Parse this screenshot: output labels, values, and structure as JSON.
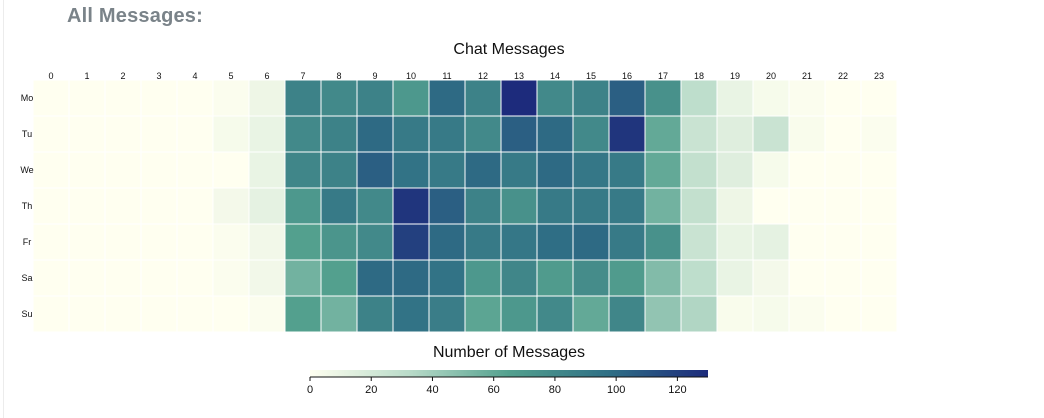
{
  "page": {
    "title": "All Messages:"
  },
  "chart_data": {
    "type": "heatmap",
    "title": "Chat Messages",
    "x_ticks": [
      "0",
      "1",
      "2",
      "3",
      "4",
      "5",
      "6",
      "7",
      "8",
      "9",
      "10",
      "11",
      "12",
      "13",
      "14",
      "15",
      "16",
      "17",
      "18",
      "19",
      "20",
      "21",
      "22",
      "23"
    ],
    "y_ticks": [
      "Mo",
      "Tu",
      "We",
      "Th",
      "Fr",
      "Sa",
      "Su"
    ],
    "values": [
      [
        0,
        0,
        0,
        0,
        0,
        2,
        8,
        85,
        80,
        85,
        70,
        100,
        85,
        130,
        80,
        85,
        105,
        75,
        30,
        10,
        4,
        2,
        0,
        0
      ],
      [
        0,
        0,
        0,
        0,
        0,
        4,
        10,
        80,
        85,
        100,
        90,
        90,
        80,
        105,
        100,
        80,
        125,
        60,
        25,
        15,
        25,
        3,
        0,
        2
      ],
      [
        0,
        0,
        0,
        0,
        0,
        0,
        10,
        82,
        85,
        105,
        95,
        90,
        100,
        90,
        100,
        92,
        90,
        60,
        28,
        15,
        4,
        0,
        0,
        0
      ],
      [
        0,
        0,
        0,
        0,
        0,
        5,
        12,
        70,
        90,
        80,
        125,
        105,
        85,
        75,
        90,
        90,
        90,
        55,
        28,
        8,
        0,
        0,
        0,
        0
      ],
      [
        0,
        0,
        0,
        0,
        0,
        2,
        6,
        65,
        72,
        80,
        120,
        100,
        90,
        92,
        98,
        100,
        90,
        75,
        25,
        10,
        12,
        0,
        0,
        0
      ],
      [
        0,
        0,
        0,
        0,
        0,
        2,
        6,
        55,
        65,
        100,
        100,
        95,
        70,
        82,
        68,
        78,
        68,
        50,
        30,
        10,
        5,
        0,
        0,
        0
      ],
      [
        0,
        0,
        0,
        0,
        0,
        0,
        2,
        65,
        55,
        85,
        95,
        88,
        62,
        70,
        80,
        60,
        82,
        45,
        35,
        3,
        4,
        2,
        0,
        0
      ]
    ],
    "colorbar": {
      "label": "Number of Messages",
      "min": 0,
      "max": 130,
      "ticks": [
        0,
        20,
        40,
        60,
        80,
        100,
        120
      ]
    },
    "colormap_stops": [
      "#fffff0",
      "#b9dbc9",
      "#53a08e",
      "#2f6f85",
      "#1d2b7c"
    ]
  }
}
